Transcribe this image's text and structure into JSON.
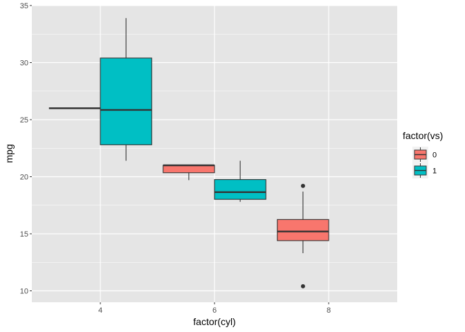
{
  "chart_data": {
    "type": "boxplot",
    "xlabel": "factor(cyl)",
    "ylabel": "mpg",
    "categories": [
      "4",
      "6",
      "8"
    ],
    "ylim": [
      9.0,
      35.0
    ],
    "yticks": [
      10,
      15,
      20,
      25,
      30,
      35
    ],
    "grid": true,
    "panel_background": "#e5e5e5",
    "grid_color": "#ffffff",
    "legend": {
      "title": "factor(vs)",
      "placement": "right",
      "entries": [
        {
          "label": "0",
          "color": "#f8766d"
        },
        {
          "label": "1",
          "color": "#00bfc4"
        }
      ]
    },
    "series": [
      {
        "group": "0",
        "color": "#f8766d",
        "boxes": [
          {
            "category": "4",
            "min": 26.0,
            "q1": 26.0,
            "median": 26.0,
            "q3": 26.0,
            "max": 26.0,
            "outliers": []
          },
          {
            "category": "6",
            "min": 19.7,
            "q1": 20.35,
            "median": 21.0,
            "q3": 21.0,
            "max": 21.0,
            "outliers": []
          },
          {
            "category": "8",
            "min": 13.3,
            "q1": 14.4,
            "median": 15.2,
            "q3": 16.25,
            "max": 18.7,
            "outliers": [
              10.4,
              19.2
            ]
          }
        ]
      },
      {
        "group": "1",
        "color": "#00bfc4",
        "boxes": [
          {
            "category": "4",
            "min": 21.4,
            "q1": 22.8,
            "median": 25.85,
            "q3": 30.4,
            "max": 33.9,
            "outliers": []
          },
          {
            "category": "6",
            "min": 17.8,
            "q1": 18.02,
            "median": 18.65,
            "q3": 19.75,
            "max": 21.4,
            "outliers": []
          }
        ]
      }
    ]
  }
}
